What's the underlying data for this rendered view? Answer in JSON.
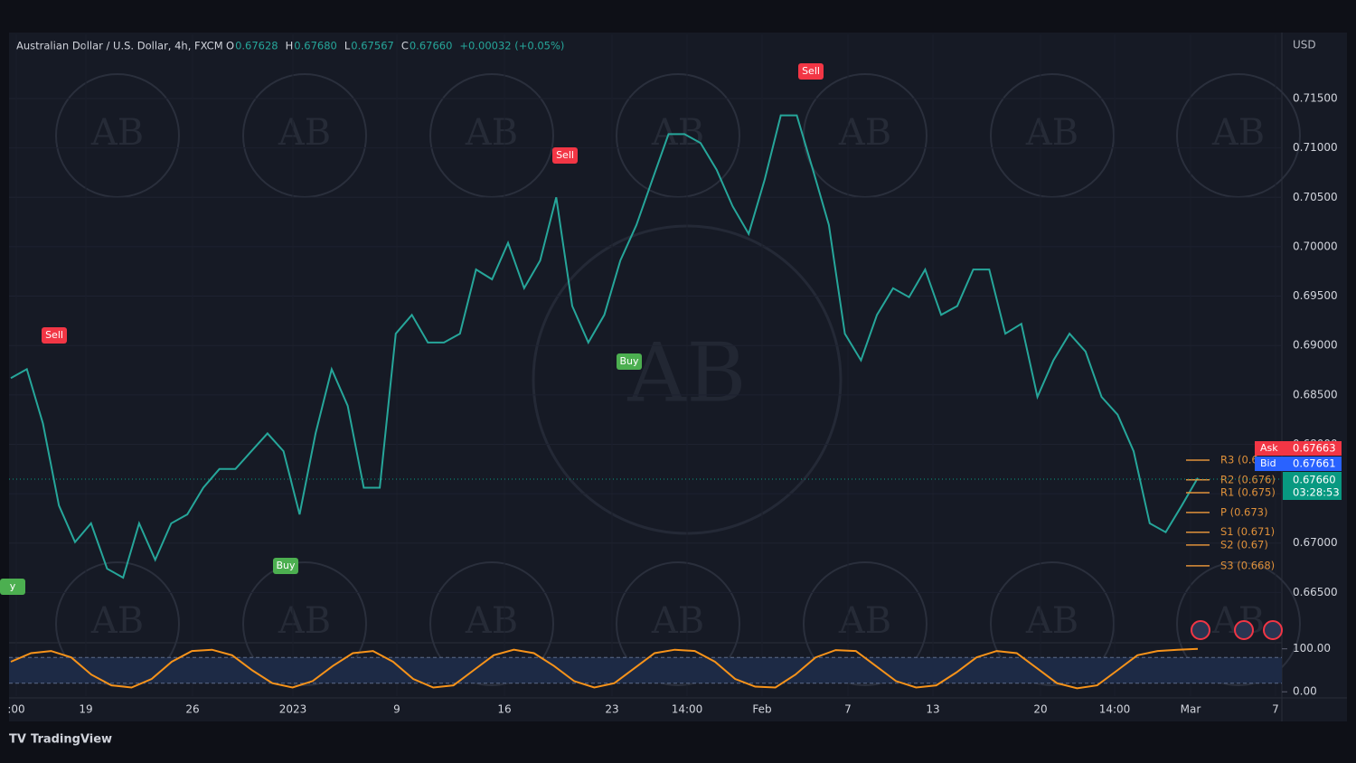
{
  "chart_data": [
    {
      "type": "line",
      "title": "Australian Dollar / U.S. Dollar, 4h, FXCM",
      "ohlc": [
        {
          "label": "O",
          "value": "0.67628"
        },
        {
          "label": "H",
          "value": "0.67680"
        },
        {
          "label": "L",
          "value": "0.67567"
        },
        {
          "label": "C",
          "value": "0.67660"
        }
      ],
      "change": "+0.00032 (+0.05%)",
      "currency": "USD",
      "color": "#26a69a",
      "values": [
        0.6867,
        0.6876,
        0.6821,
        0.6738,
        0.6701,
        0.672,
        0.6674,
        0.6665,
        0.672,
        0.6683,
        0.672,
        0.6729,
        0.6756,
        0.6775,
        0.6775,
        0.6793,
        0.6811,
        0.6793,
        0.6729,
        0.6811,
        0.6876,
        0.6839,
        0.6756,
        0.6756,
        0.6912,
        0.6931,
        0.6903,
        0.6903,
        0.6912,
        0.6977,
        0.6967,
        0.7004,
        0.6958,
        0.6986,
        0.705,
        0.694,
        0.6903,
        0.6931,
        0.6986,
        0.7022,
        0.7068,
        0.7114,
        0.7114,
        0.7105,
        0.7078,
        0.7041,
        0.7013,
        0.7068,
        0.7133,
        0.7133,
        0.7078,
        0.7022,
        0.6912,
        0.6885,
        0.6931,
        0.6958,
        0.6949,
        0.6977,
        0.6931,
        0.694,
        0.6977,
        0.6977,
        0.6912,
        0.6922,
        0.6848,
        0.6885,
        0.6912,
        0.6894,
        0.6848,
        0.683,
        0.6793,
        0.672,
        0.6711,
        0.6738,
        0.6766
      ],
      "ylim": [
        0.66,
        0.7215
      ],
      "yticks": [
        {
          "value": 0.665,
          "label": "0.66500"
        },
        {
          "value": 0.67,
          "label": "0.67000"
        },
        {
          "value": 0.675,
          "label": "0.67500"
        },
        {
          "value": 0.68,
          "label": "0.68000"
        },
        {
          "value": 0.685,
          "label": "0.68500"
        },
        {
          "value": 0.69,
          "label": "0.69000"
        },
        {
          "value": 0.695,
          "label": "0.69500"
        },
        {
          "value": 0.7,
          "label": "0.70000"
        },
        {
          "value": 0.705,
          "label": "0.70500"
        },
        {
          "value": 0.71,
          "label": "0.71000"
        },
        {
          "value": 0.715,
          "label": "0.71500"
        }
      ],
      "xtick_labels": [
        ":00",
        "19",
        "26",
        "2023",
        "9",
        "16",
        "23",
        "14:00",
        "Feb",
        "7",
        "13",
        "20",
        "14:00",
        "Mar",
        "7"
      ],
      "pivots": [
        {
          "label": "R3 (0.6",
          "value": 0.6784
        },
        {
          "label": "R2 (0.676)",
          "value": 0.6764
        },
        {
          "label": "R1 (0.675)",
          "value": 0.6751
        },
        {
          "label": "P (0.673)",
          "value": 0.6731
        },
        {
          "label": "S1 (0.671)",
          "value": 0.6711
        },
        {
          "label": "S2 (0.67)",
          "value": 0.6698
        },
        {
          "label": "S3 (0.668)",
          "value": 0.6677
        }
      ],
      "signals": [
        "Sell",
        "Sell",
        "Sell",
        "Buy",
        "Buy",
        "y"
      ],
      "price_tags": {
        "ask_label": "Ask",
        "ask": "0.67663",
        "bid_label": "Bid",
        "bid": "0.67661",
        "last": "0.67660",
        "countdown": "03:28:53"
      },
      "grid": true
    },
    {
      "type": "line",
      "color": "#f7931a",
      "values": [
        70,
        90,
        95,
        80,
        40,
        15,
        10,
        30,
        70,
        95,
        98,
        85,
        50,
        20,
        10,
        25,
        60,
        90,
        95,
        70,
        30,
        10,
        15,
        50,
        85,
        98,
        90,
        60,
        25,
        10,
        20,
        55,
        90,
        98,
        95,
        70,
        30,
        12,
        10,
        40,
        80,
        97,
        95,
        60,
        25,
        10,
        15,
        45,
        80,
        95,
        90,
        55,
        20,
        8,
        15,
        50,
        85,
        95,
        98,
        100
      ],
      "ylim": [
        -10,
        112
      ],
      "yticks": [
        {
          "value": 100,
          "label": "100.00"
        },
        {
          "value": 0,
          "label": "0.00"
        }
      ],
      "levels": [
        80,
        20
      ]
    }
  ],
  "watermark": "AB",
  "footer": "TradingView"
}
